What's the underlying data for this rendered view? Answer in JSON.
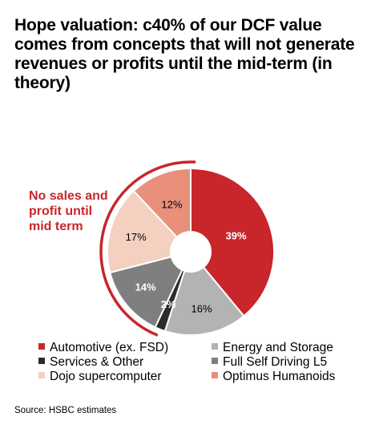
{
  "header": {
    "title": "Hope valuation: c40% of our DCF value comes from concepts that will not generate revenues or profits until the mid-term (in theory)"
  },
  "annotation": {
    "text": "No sales and profit until mid term",
    "color": "#c8262b"
  },
  "footer": {
    "source": "Source: HSBC estimates"
  },
  "chart_data": {
    "type": "pie",
    "donut": true,
    "categories": [
      "Automotive (ex. FSD)",
      "Energy and Storage",
      "Services & Other",
      "Full Self Driving L5",
      "Dojo supercomputer",
      "Optimus Humanoids"
    ],
    "values": [
      39,
      16,
      2,
      14,
      17,
      12
    ],
    "labels": [
      "39%",
      "16%",
      "2%",
      "14%",
      "17%",
      "12%"
    ],
    "colors": [
      "#c8262b",
      "#b3b3b3",
      "#2b2b2b",
      "#7f7f7f",
      "#f3d0c0",
      "#e8907a"
    ],
    "label_colors": [
      "#ffffff",
      "#000000",
      "#ffffff",
      "#ffffff",
      "#000000",
      "#000000"
    ],
    "legend_placement": "bottom"
  }
}
